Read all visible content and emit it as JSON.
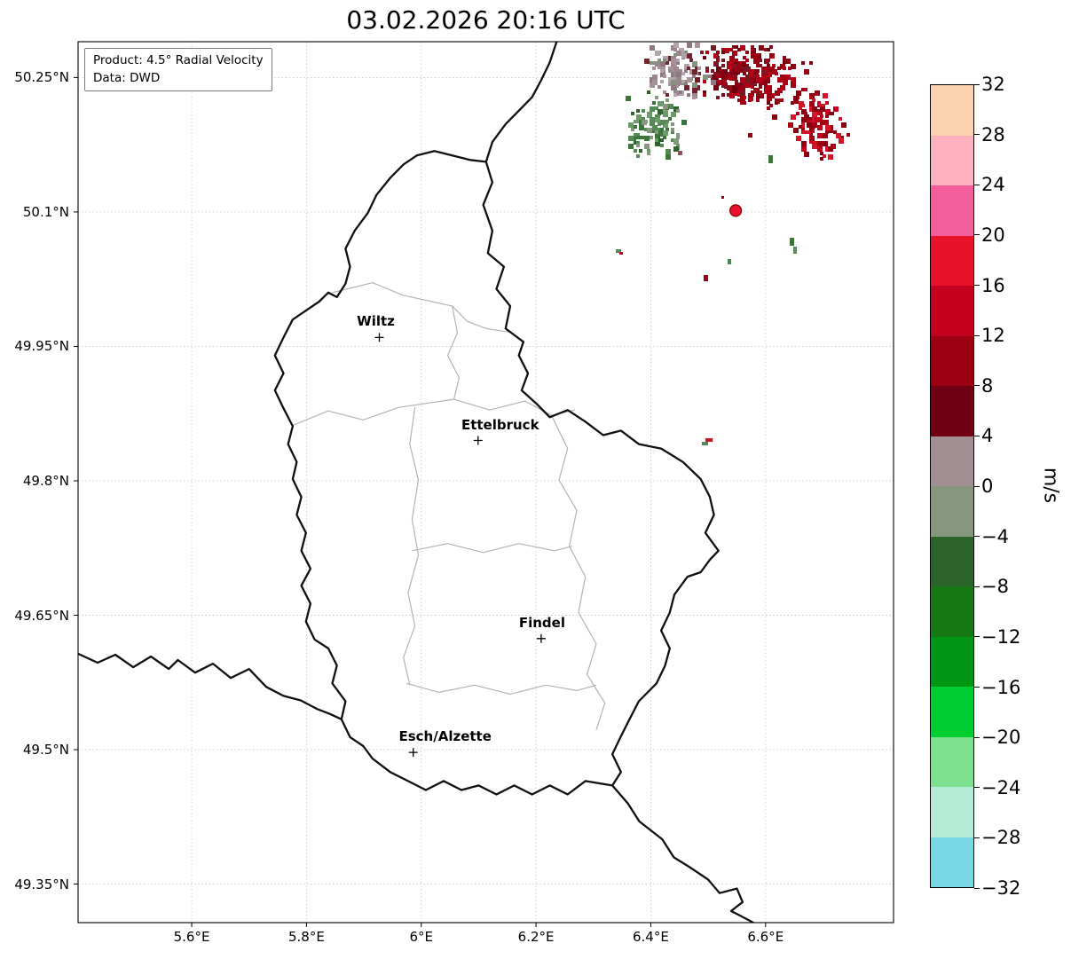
{
  "title": "03.02.2026 20:16 UTC",
  "info_box": {
    "product": "Product: 4.5° Radial Velocity",
    "data_source": "Data: DWD"
  },
  "colorbar": {
    "label": "m/s",
    "tick_labels": [
      "32",
      "28",
      "24",
      "20",
      "16",
      "12",
      "8",
      "4",
      "0",
      "−4",
      "−8",
      "−12",
      "−16",
      "−20",
      "−24",
      "−28",
      "−32"
    ],
    "segment_colors_top_to_bottom": [
      "#fbd2ae",
      "#fdb0c0",
      "#f25d9c",
      "#e8132b",
      "#c3001e",
      "#9c0013",
      "#700013",
      "#a38e94",
      "#87977f",
      "#2c642c",
      "#147814",
      "#009614",
      "#00cd32",
      "#7de08f",
      "#b4ecd8",
      "#79d8e4"
    ]
  },
  "map": {
    "projection": {
      "lon_min": 5.402,
      "lon_max": 6.823,
      "lat_min": 49.307,
      "lat_max": 50.29
    },
    "x_ticks": [
      {
        "label": "5.6°E",
        "lon": 5.6
      },
      {
        "label": "5.8°E",
        "lon": 5.8
      },
      {
        "label": "6°E",
        "lon": 6.0
      },
      {
        "label": "6.2°E",
        "lon": 6.2
      },
      {
        "label": "6.4°E",
        "lon": 6.4
      },
      {
        "label": "6.6°E",
        "lon": 6.6
      }
    ],
    "y_ticks": [
      {
        "label": "50.25°N",
        "lat": 50.25
      },
      {
        "label": "50.1°N",
        "lat": 50.1
      },
      {
        "label": "49.95°N",
        "lat": 49.95
      },
      {
        "label": "49.8°N",
        "lat": 49.8
      },
      {
        "label": "49.65°N",
        "lat": 49.65
      },
      {
        "label": "49.5°N",
        "lat": 49.5
      },
      {
        "label": "49.35°N",
        "lat": 49.35
      }
    ],
    "cities": [
      {
        "name": "Wiltz",
        "lon": 5.927,
        "lat": 49.96,
        "label_dx": -4
      },
      {
        "name": "Ettelbruck",
        "lon": 6.099,
        "lat": 49.845,
        "label_dx": 25
      },
      {
        "name": "Findel",
        "lon": 6.209,
        "lat": 49.624,
        "label_dx": 1
      },
      {
        "name": "Esch/Alzette",
        "lon": 5.986,
        "lat": 49.497,
        "label_dx": 36
      }
    ],
    "radar_site": {
      "lon": 6.548,
      "lat": 50.1015
    },
    "national_borders": [
      [
        [
          6.113,
          50.156
        ],
        [
          6.124,
          50.133
        ],
        [
          6.108,
          50.108
        ],
        [
          6.124,
          50.079
        ],
        [
          6.116,
          50.054
        ],
        [
          6.144,
          50.039
        ],
        [
          6.131,
          50.014
        ],
        [
          6.155,
          49.995
        ],
        [
          6.147,
          49.97
        ],
        [
          6.178,
          49.955
        ],
        [
          6.17,
          49.94
        ],
        [
          6.186,
          49.92
        ],
        [
          6.175,
          49.901
        ],
        [
          6.201,
          49.886
        ],
        [
          6.224,
          49.871
        ],
        [
          6.255,
          49.879
        ],
        [
          6.286,
          49.866
        ],
        [
          6.317,
          49.851
        ],
        [
          6.348,
          49.856
        ],
        [
          6.379,
          49.841
        ],
        [
          6.418,
          49.836
        ],
        [
          6.456,
          49.821
        ],
        [
          6.487,
          49.802
        ],
        [
          6.503,
          49.782
        ],
        [
          6.51,
          49.762
        ],
        [
          6.495,
          49.742
        ],
        [
          6.518,
          49.722
        ],
        [
          6.503,
          49.712
        ],
        [
          6.487,
          49.698
        ],
        [
          6.464,
          49.693
        ],
        [
          6.441,
          49.673
        ],
        [
          6.433,
          49.653
        ],
        [
          6.418,
          49.633
        ],
        [
          6.433,
          49.613
        ],
        [
          6.425,
          49.594
        ],
        [
          6.41,
          49.574
        ],
        [
          6.379,
          49.554
        ],
        [
          6.363,
          49.534
        ],
        [
          6.348,
          49.515
        ],
        [
          6.333,
          49.495
        ],
        [
          6.348,
          49.475
        ],
        [
          6.333,
          49.46
        ],
        [
          6.286,
          49.465
        ],
        [
          6.255,
          49.45
        ],
        [
          6.224,
          49.46
        ],
        [
          6.193,
          49.45
        ],
        [
          6.162,
          49.46
        ],
        [
          6.131,
          49.45
        ],
        [
          6.1,
          49.46
        ],
        [
          6.07,
          49.455
        ],
        [
          6.039,
          49.465
        ],
        [
          6.008,
          49.455
        ],
        [
          5.977,
          49.465
        ],
        [
          5.946,
          49.475
        ],
        [
          5.915,
          49.49
        ],
        [
          5.899,
          49.504
        ],
        [
          5.876,
          49.514
        ],
        [
          5.861,
          49.534
        ],
        [
          5.868,
          49.554
        ],
        [
          5.845,
          49.574
        ],
        [
          5.853,
          49.594
        ],
        [
          5.838,
          49.613
        ],
        [
          5.814,
          49.623
        ],
        [
          5.799,
          49.643
        ],
        [
          5.807,
          49.663
        ],
        [
          5.791,
          49.683
        ],
        [
          5.807,
          49.702
        ],
        [
          5.791,
          49.722
        ],
        [
          5.799,
          49.742
        ],
        [
          5.783,
          49.762
        ],
        [
          5.791,
          49.782
        ],
        [
          5.776,
          49.802
        ],
        [
          5.783,
          49.821
        ],
        [
          5.768,
          49.841
        ],
        [
          5.776,
          49.861
        ],
        [
          5.76,
          49.881
        ],
        [
          5.745,
          49.901
        ],
        [
          5.76,
          49.92
        ],
        [
          5.745,
          49.94
        ],
        [
          5.76,
          49.96
        ],
        [
          5.776,
          49.98
        ],
        [
          5.799,
          49.99
        ],
        [
          5.822,
          50.0
        ],
        [
          5.838,
          50.01
        ],
        [
          5.853,
          50.005
        ],
        [
          5.868,
          50.02
        ],
        [
          5.876,
          50.039
        ],
        [
          5.868,
          50.059
        ],
        [
          5.884,
          50.079
        ],
        [
          5.907,
          50.099
        ],
        [
          5.922,
          50.119
        ],
        [
          5.946,
          50.138
        ],
        [
          5.969,
          50.153
        ],
        [
          5.992,
          50.163
        ],
        [
          6.023,
          50.168
        ],
        [
          6.054,
          50.163
        ],
        [
          6.085,
          50.158
        ],
        [
          6.113,
          50.156
        ]
      ],
      [
        [
          6.113,
          50.156
        ],
        [
          6.124,
          50.178
        ],
        [
          6.147,
          50.198
        ],
        [
          6.17,
          50.213
        ],
        [
          6.193,
          50.228
        ],
        [
          6.209,
          50.247
        ],
        [
          6.224,
          50.267
        ],
        [
          6.237,
          50.292
        ]
      ],
      [
        [
          6.333,
          49.46
        ],
        [
          6.36,
          49.44
        ],
        [
          6.38,
          49.42
        ],
        [
          6.42,
          49.4
        ],
        [
          6.44,
          49.38
        ],
        [
          6.47,
          49.368
        ],
        [
          6.5,
          49.355
        ],
        [
          6.52,
          49.34
        ],
        [
          6.55,
          49.345
        ],
        [
          6.56,
          49.33
        ],
        [
          6.54,
          49.32
        ],
        [
          6.57,
          49.31
        ],
        [
          6.59,
          49.303
        ]
      ],
      [
        [
          5.402,
          49.607
        ],
        [
          5.436,
          49.597
        ],
        [
          5.467,
          49.606
        ],
        [
          5.498,
          49.592
        ],
        [
          5.529,
          49.604
        ],
        [
          5.56,
          49.59
        ],
        [
          5.576,
          49.6
        ],
        [
          5.606,
          49.586
        ],
        [
          5.637,
          49.596
        ],
        [
          5.668,
          49.58
        ],
        [
          5.7,
          49.59
        ],
        [
          5.73,
          49.57
        ],
        [
          5.76,
          49.56
        ],
        [
          5.79,
          49.555
        ],
        [
          5.82,
          49.545
        ],
        [
          5.84,
          49.54
        ],
        [
          5.861,
          49.534
        ]
      ]
    ],
    "district_borders": [
      [
        [
          5.845,
          50.01
        ],
        [
          5.915,
          50.021
        ],
        [
          5.969,
          50.007
        ],
        [
          6.026,
          49.999
        ],
        [
          6.054,
          49.995
        ],
        [
          6.08,
          49.978
        ],
        [
          6.113,
          49.97
        ],
        [
          6.152,
          49.966
        ]
      ],
      [
        [
          6.054,
          49.995
        ],
        [
          6.063,
          49.965
        ],
        [
          6.046,
          49.94
        ],
        [
          6.066,
          49.915
        ],
        [
          6.057,
          49.891
        ]
      ],
      [
        [
          5.776,
          49.862
        ],
        [
          5.838,
          49.878
        ],
        [
          5.899,
          49.868
        ],
        [
          5.961,
          49.882
        ],
        [
          6.057,
          49.891
        ],
        [
          6.119,
          49.879
        ],
        [
          6.181,
          49.889
        ],
        [
          6.227,
          49.873
        ],
        [
          6.268,
          49.879
        ]
      ],
      [
        [
          5.989,
          49.882
        ],
        [
          5.98,
          49.841
        ],
        [
          5.995,
          49.801
        ],
        [
          5.984,
          49.757
        ],
        [
          5.995,
          49.717
        ],
        [
          5.977,
          49.675
        ],
        [
          5.989,
          49.638
        ],
        [
          5.969,
          49.603
        ],
        [
          5.98,
          49.572
        ]
      ],
      [
        [
          6.227,
          49.873
        ],
        [
          6.255,
          49.836
        ],
        [
          6.24,
          49.801
        ],
        [
          6.271,
          49.767
        ],
        [
          6.258,
          49.727
        ],
        [
          6.286,
          49.693
        ],
        [
          6.274,
          49.653
        ],
        [
          6.305,
          49.618
        ],
        [
          6.289,
          49.584
        ],
        [
          6.32,
          49.552
        ],
        [
          6.305,
          49.522
        ]
      ],
      [
        [
          5.984,
          49.722
        ],
        [
          6.046,
          49.73
        ],
        [
          6.108,
          49.72
        ],
        [
          6.17,
          49.73
        ],
        [
          6.232,
          49.722
        ],
        [
          6.263,
          49.727
        ]
      ],
      [
        [
          5.974,
          49.574
        ],
        [
          6.031,
          49.564
        ],
        [
          6.093,
          49.572
        ],
        [
          6.155,
          49.562
        ],
        [
          6.217,
          49.572
        ],
        [
          6.271,
          49.566
        ],
        [
          6.305,
          49.572
        ]
      ]
    ]
  },
  "echoes": {
    "clusters": [
      {
        "name": "inbound-red-main",
        "lon": 6.554,
        "lat": 50.255,
        "rlon": 0.085,
        "rlat": 0.038,
        "n": 210,
        "colors": [
          "#70000f",
          "#8a0010",
          "#9e0013",
          "#b00016",
          "#781822"
        ]
      },
      {
        "name": "inbound-red-east",
        "lon": 6.691,
        "lat": 50.199,
        "rlon": 0.059,
        "rlat": 0.042,
        "n": 95,
        "colors": [
          "#8a0010",
          "#a40014",
          "#c3001e",
          "#d41428"
        ]
      },
      {
        "name": "inbound-red-scatter",
        "lon": 6.626,
        "lat": 50.242,
        "rlon": 0.07,
        "rlat": 0.04,
        "n": 50,
        "colors": [
          "#8a0010",
          "#9e0013",
          "#b00016"
        ]
      },
      {
        "name": "near-zero-gray",
        "lon": 6.444,
        "lat": 50.259,
        "rlon": 0.065,
        "rlat": 0.033,
        "n": 120,
        "colors": [
          "#9b868e",
          "#a79399",
          "#8d7883",
          "#b2a4aa",
          "#83937e",
          "#74222c"
        ]
      },
      {
        "name": "outbound-green",
        "lon": 6.402,
        "lat": 50.197,
        "rlon": 0.056,
        "rlat": 0.04,
        "n": 105,
        "colors": [
          "#2c642c",
          "#3c743c",
          "#548a54",
          "#6b9b6b",
          "#87977f"
        ]
      }
    ],
    "cells": [
      {
        "lon": 6.605,
        "lat": 50.163,
        "w": 5,
        "h": 9,
        "color": "#3c743c"
      },
      {
        "lon": 6.492,
        "lat": 50.03,
        "w": 5,
        "h": 7,
        "color": "#9e0013"
      },
      {
        "lon": 6.534,
        "lat": 50.047,
        "w": 4,
        "h": 6,
        "color": "#4a8a4e"
      },
      {
        "lon": 6.339,
        "lat": 50.058,
        "w": 6,
        "h": 4,
        "color": "#548a54"
      },
      {
        "lon": 6.345,
        "lat": 50.0555,
        "w": 4,
        "h": 3,
        "color": "#c3001e"
      },
      {
        "lon": 6.642,
        "lat": 50.071,
        "w": 5,
        "h": 9,
        "color": "#3c743c"
      },
      {
        "lon": 6.648,
        "lat": 50.0615,
        "w": 4,
        "h": 8,
        "color": "#548a54"
      },
      {
        "lon": 6.495,
        "lat": 49.8475,
        "w": 8,
        "h": 4,
        "color": "#c81428"
      },
      {
        "lon": 6.489,
        "lat": 49.8435,
        "w": 7,
        "h": 4,
        "color": "#548a54"
      },
      {
        "lon": 6.447,
        "lat": 50.168,
        "w": 5,
        "h": 5,
        "color": "#8a5560"
      },
      {
        "lon": 6.569,
        "lat": 50.188,
        "w": 5,
        "h": 5,
        "color": "#98000d"
      },
      {
        "lon": 6.523,
        "lat": 50.118,
        "w": 3,
        "h": 3,
        "color": "#9e0013"
      }
    ]
  }
}
